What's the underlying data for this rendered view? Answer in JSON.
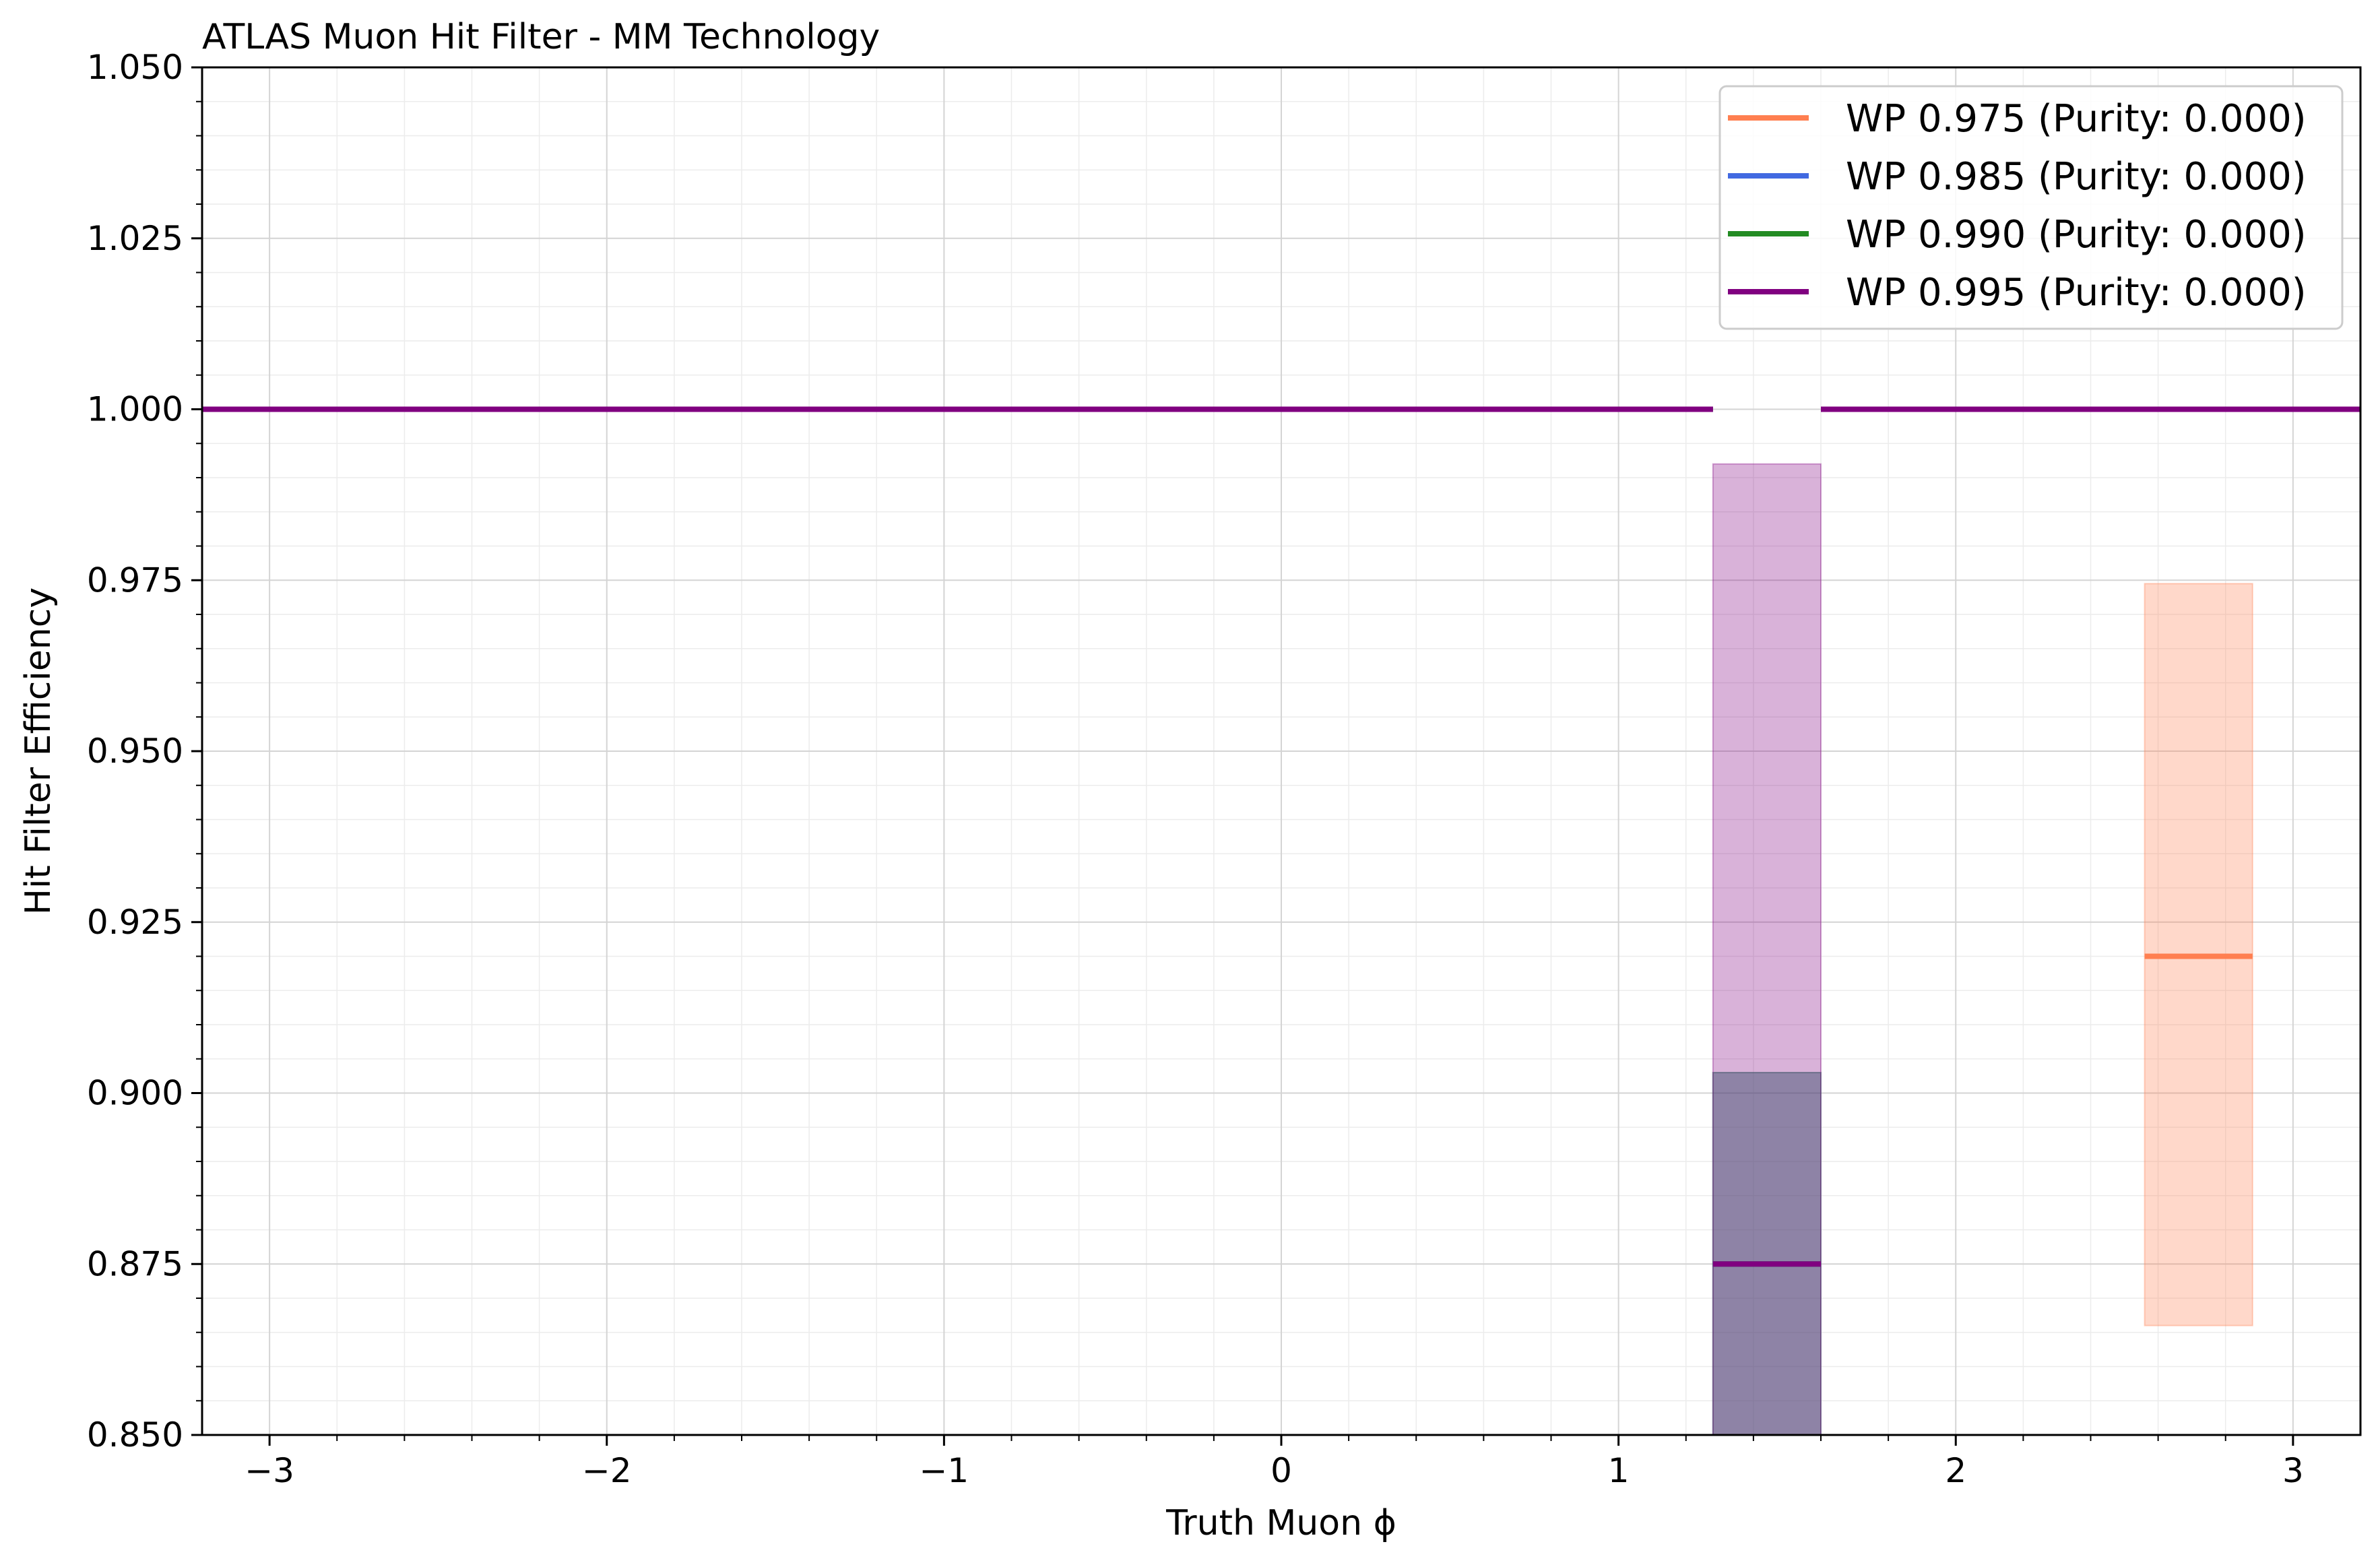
{
  "chart_data": {
    "type": "line",
    "title": "ATLAS Muon Hit Filter - MM Technology",
    "xlabel": "Truth Muon ϕ",
    "ylabel": "Hit Filter Efficiency",
    "xlim": [
      -3.2,
      3.2
    ],
    "ylim": [
      0.85,
      1.05
    ],
    "xticks": [
      -3,
      -2,
      -1,
      0,
      1,
      2,
      3
    ],
    "xtick_labels": [
      "−3",
      "−2",
      "−1",
      "0",
      "1",
      "2",
      "3"
    ],
    "yticks": [
      0.85,
      0.875,
      0.9,
      0.925,
      0.95,
      0.975,
      1.0,
      1.025,
      1.05
    ],
    "ytick_labels": [
      "0.850",
      "0.875",
      "0.900",
      "0.925",
      "0.950",
      "0.975",
      "1.000",
      "1.025",
      "1.050"
    ],
    "grid": true,
    "legend_position": "top-right",
    "series": [
      {
        "name": "WP 0.975 (Purity: 0.000)",
        "color": "#ff7f50",
        "segments": [
          {
            "x0": -3.2,
            "x1": 1.28,
            "y": 1.0
          },
          {
            "x0": 1.6,
            "x1": 2.56,
            "y": 1.0
          },
          {
            "x0": 2.56,
            "x1": 2.88,
            "y": 0.92,
            "err_low": 0.866,
            "err_high": 0.9745
          },
          {
            "x0": 2.88,
            "x1": 3.2,
            "y": 1.0
          }
        ]
      },
      {
        "name": "WP 0.985 (Purity: 0.000)",
        "color": "#4169e1",
        "segments": [
          {
            "x0": -3.2,
            "x1": 1.28,
            "y": 1.0
          },
          {
            "x0": 1.28,
            "x1": 1.6,
            "y": 0.875,
            "err_low": 0.85,
            "err_high": 0.903
          },
          {
            "x0": 1.6,
            "x1": 3.2,
            "y": 1.0
          }
        ]
      },
      {
        "name": "WP 0.990 (Purity: 0.000)",
        "color": "#228b22",
        "segments": [
          {
            "x0": -3.2,
            "x1": 1.28,
            "y": 1.0
          },
          {
            "x0": 1.28,
            "x1": 1.6,
            "y": 0.875,
            "err_low": 0.85,
            "err_high": 0.903
          },
          {
            "x0": 1.6,
            "x1": 3.2,
            "y": 1.0
          }
        ]
      },
      {
        "name": "WP 0.995 (Purity: 0.000)",
        "color": "#800080",
        "segments": [
          {
            "x0": -3.2,
            "x1": 1.28,
            "y": 1.0
          },
          {
            "x0": 1.28,
            "x1": 1.6,
            "y": 0.875,
            "err_low": 0.85,
            "err_high": 0.992
          },
          {
            "x0": 1.6,
            "x1": 3.2,
            "y": 1.0
          }
        ]
      }
    ]
  }
}
